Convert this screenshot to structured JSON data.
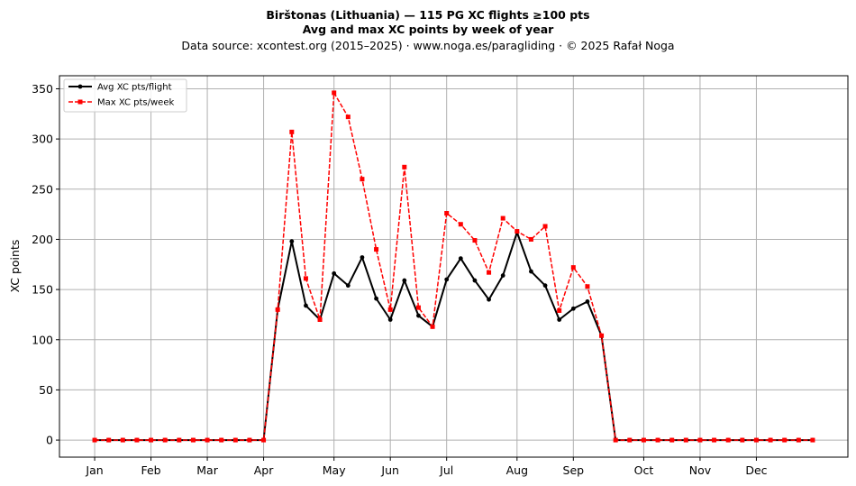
{
  "chart_data": {
    "type": "line",
    "title_line1": "Birštonas (Lithuania)  —  115 PG XC flights ≥100 pts",
    "title_line2": "Avg and max XC points by week of year",
    "subtitle": "Data source: xcontest.org (2015–2025)  ·  www.noga.es/paragliding  ·  © 2025 Rafał Noga",
    "xlabel": "",
    "ylabel": "XC points",
    "ylim": [
      -17,
      363
    ],
    "xlim": [
      -2.5,
      53.5
    ],
    "grid": true,
    "legend_position": "top-left",
    "x_ticks": [
      {
        "label": "Jan",
        "week": 0
      },
      {
        "label": "Feb",
        "week": 4
      },
      {
        "label": "Mar",
        "week": 8
      },
      {
        "label": "Apr",
        "week": 12
      },
      {
        "label": "May",
        "week": 17
      },
      {
        "label": "Jun",
        "week": 21
      },
      {
        "label": "Jul",
        "week": 25
      },
      {
        "label": "Aug",
        "week": 30
      },
      {
        "label": "Sep",
        "week": 34
      },
      {
        "label": "Oct",
        "week": 39
      },
      {
        "label": "Nov",
        "week": 43
      },
      {
        "label": "Dec",
        "week": 47
      }
    ],
    "y_ticks": [
      0,
      50,
      100,
      150,
      200,
      250,
      300,
      350
    ],
    "x": [
      0,
      1,
      2,
      3,
      4,
      5,
      6,
      7,
      8,
      9,
      10,
      11,
      12,
      13,
      14,
      15,
      16,
      17,
      18,
      19,
      20,
      21,
      22,
      23,
      24,
      25,
      26,
      27,
      28,
      29,
      30,
      31,
      32,
      33,
      34,
      35,
      36,
      37,
      38,
      39,
      40,
      41,
      42,
      43,
      44,
      45,
      46,
      47,
      48,
      49,
      50,
      51
    ],
    "series": [
      {
        "name": "Avg XC pts/flight",
        "color": "#000000",
        "style": "solid",
        "marker": "circle",
        "values": [
          0,
          0,
          0,
          0,
          0,
          0,
          0,
          0,
          0,
          0,
          0,
          0,
          0,
          130,
          198,
          134,
          120,
          166,
          154,
          182,
          141,
          120,
          159,
          124,
          113,
          160,
          181,
          159,
          140,
          164,
          207,
          168,
          154,
          120,
          131,
          138,
          104,
          0,
          0,
          0,
          0,
          0,
          0,
          0,
          0,
          0,
          0,
          0,
          0,
          0,
          0,
          0
        ]
      },
      {
        "name": "Max XC pts/week",
        "color": "#ff0000",
        "style": "dashed",
        "marker": "square",
        "values": [
          0,
          0,
          0,
          0,
          0,
          0,
          0,
          0,
          0,
          0,
          0,
          0,
          0,
          130,
          307,
          161,
          120,
          346,
          322,
          260,
          190,
          130,
          272,
          132,
          113,
          226,
          215,
          199,
          167,
          221,
          208,
          200,
          213,
          129,
          172,
          153,
          104,
          0,
          0,
          0,
          0,
          0,
          0,
          0,
          0,
          0,
          0,
          0,
          0,
          0,
          0,
          0
        ]
      }
    ]
  }
}
